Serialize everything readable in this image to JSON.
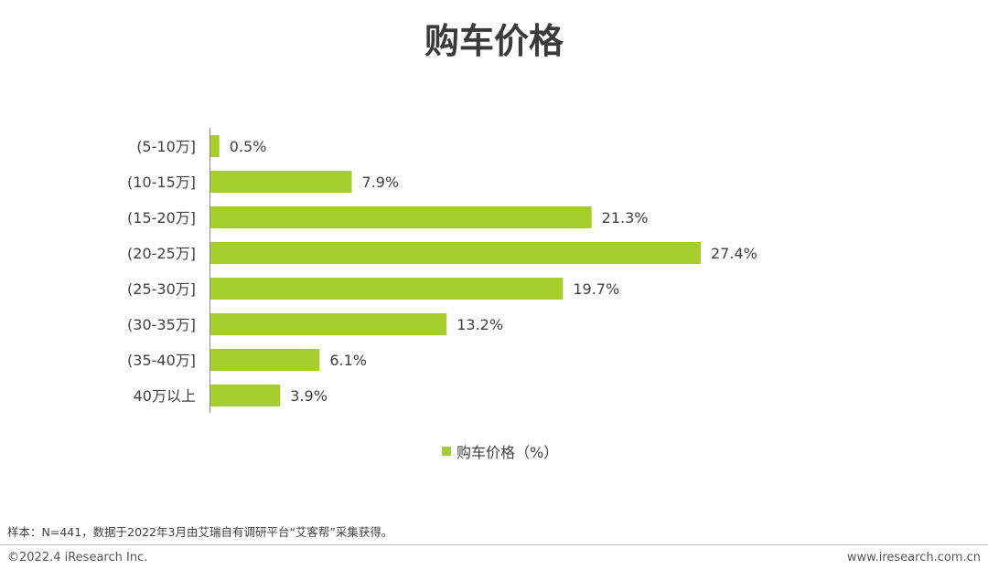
{
  "title": "购车价格",
  "chart_data": {
    "type": "bar",
    "orientation": "horizontal",
    "categories": [
      "(5-10万]",
      "(10-15万]",
      "(15-20万]",
      "(20-25万]",
      "(25-30万]",
      "(30-35万]",
      "(35-40万]",
      "40万以上"
    ],
    "series": [
      {
        "name": "购车价格（%）",
        "values": [
          0.5,
          7.9,
          21.3,
          27.4,
          19.7,
          13.2,
          6.1,
          3.9
        ],
        "color": "#a5cd2b"
      }
    ],
    "value_labels": [
      "0.5%",
      "7.9%",
      "21.3%",
      "27.4%",
      "19.7%",
      "13.2%",
      "6.1%",
      "3.9%"
    ],
    "xlim": [
      0,
      30
    ],
    "grid": false,
    "legend_position": "bottom"
  },
  "legend": {
    "label": "购车价格（%）"
  },
  "footer": {
    "note": "样本：N=441，数据于2022年3月由艾瑞自有调研平台“艾客帮”采集获得。",
    "copyright": "©2022.4 iResearch Inc.",
    "website": "www.iresearch.com.cn"
  }
}
